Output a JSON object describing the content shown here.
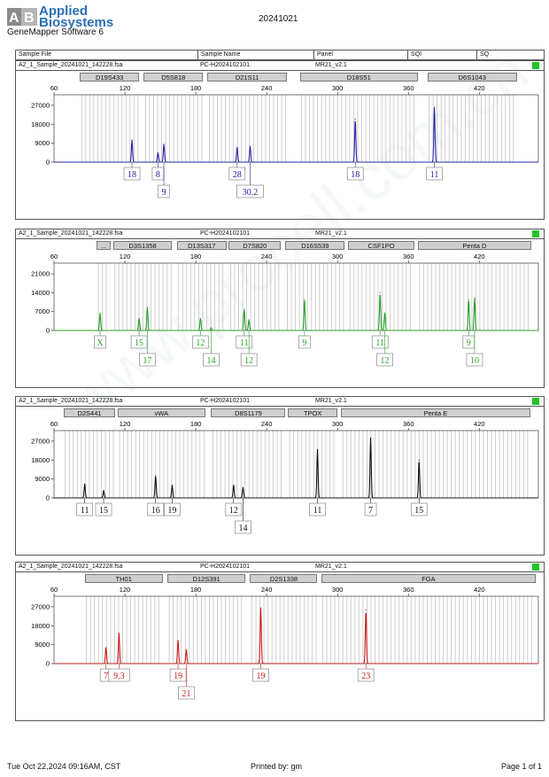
{
  "brand": {
    "line1": "Applied",
    "line2": "Biosystems",
    "software": "GeneMapper Software 6"
  },
  "run_id": "20241021",
  "header": {
    "sample_file": "Sample File",
    "sample_name": "Sample Name",
    "panel": "Panel",
    "sqi": "SQI",
    "sq": "SQ"
  },
  "footer": {
    "datetime": "Tue Oct 22,2024 09:16AM, CST",
    "printed_by": "Printed by: gm",
    "page": "Page 1 of 1"
  },
  "colors": {
    "blue": "#2424a8",
    "green": "#2aa02a",
    "black": "#111111",
    "red": "#cc1a1a",
    "status": "#22c22a",
    "marker_fill": "#cfcfcf"
  },
  "chart_data": [
    {
      "type": "line",
      "dye": "blue",
      "sample_file": "A2_1_Sample_20241021_142228.fsa",
      "sample_name": "PC-H2024102101",
      "panel": "MR21_v2.1",
      "x_ticks": [
        60,
        120,
        180,
        240,
        300,
        360,
        420
      ],
      "xlim": [
        60,
        470
      ],
      "y_ticks": [
        0,
        9000,
        18000,
        27000
      ],
      "y_tick_labels": [
        "0",
        "9000",
        "18000",
        "27000"
      ],
      "ylim": [
        0,
        32000
      ],
      "markers": [
        {
          "label": "D19S433",
          "x0": 82,
          "x1": 132
        },
        {
          "label": "D5S818",
          "x0": 136,
          "x1": 186
        },
        {
          "label": "D21S11",
          "x0": 190,
          "x1": 257
        },
        {
          "label": "D18S51",
          "x0": 268,
          "x1": 368
        },
        {
          "label": "D6S1043",
          "x0": 376,
          "x1": 452
        }
      ],
      "peaks": [
        {
          "x": 126,
          "y": 10500
        },
        {
          "x": 148,
          "y": 4500
        },
        {
          "x": 153,
          "y": 8500
        },
        {
          "x": 215,
          "y": 7000
        },
        {
          "x": 226,
          "y": 7500
        },
        {
          "x": 315,
          "y": 20500
        },
        {
          "x": 382,
          "y": 26000
        }
      ],
      "alleles": [
        {
          "label": "18",
          "x": 126,
          "row": 1
        },
        {
          "label": "8",
          "x": 148,
          "row": 1
        },
        {
          "label": "9",
          "x": 153,
          "row": 2
        },
        {
          "label": "28",
          "x": 215,
          "row": 1
        },
        {
          "label": "30.2",
          "x": 226,
          "row": 2
        },
        {
          "label": "18",
          "x": 315,
          "row": 1
        },
        {
          "label": "11",
          "x": 382,
          "row": 1
        }
      ]
    },
    {
      "type": "line",
      "dye": "green",
      "sample_file": "A2_1_Sample_20241021_142228.fsa",
      "sample_name": "PC-H2024102101",
      "panel": "MR21_v2.1",
      "x_ticks": [
        60,
        120,
        180,
        240,
        300,
        360,
        420
      ],
      "xlim": [
        60,
        470
      ],
      "y_ticks": [
        0,
        7000,
        14000,
        21000
      ],
      "y_tick_labels": [
        "0",
        "7000",
        "14000",
        "21000"
      ],
      "ylim": [
        0,
        25000
      ],
      "markers": [
        {
          "label": "...",
          "x0": 96,
          "x1": 108
        },
        {
          "label": "D3S1358",
          "x0": 110,
          "x1": 160
        },
        {
          "label": "D13S317",
          "x0": 164,
          "x1": 206
        },
        {
          "label": "D7S820",
          "x0": 208,
          "x1": 252
        },
        {
          "label": "D16S539",
          "x0": 256,
          "x1": 306
        },
        {
          "label": "CSF1PO",
          "x0": 309,
          "x1": 365
        },
        {
          "label": "Penta D",
          "x0": 368,
          "x1": 464
        }
      ],
      "peaks": [
        {
          "x": 99,
          "y": 6500
        },
        {
          "x": 132,
          "y": 4500
        },
        {
          "x": 139,
          "y": 8500
        },
        {
          "x": 184,
          "y": 4500
        },
        {
          "x": 193,
          "y": 1000
        },
        {
          "x": 221,
          "y": 8000
        },
        {
          "x": 225,
          "y": 4000
        },
        {
          "x": 272,
          "y": 11500
        },
        {
          "x": 336,
          "y": 14000
        },
        {
          "x": 340,
          "y": 6500
        },
        {
          "x": 411,
          "y": 11500
        },
        {
          "x": 416,
          "y": 12000
        }
      ],
      "alleles": [
        {
          "label": "X",
          "x": 99,
          "row": 1
        },
        {
          "label": "15",
          "x": 132,
          "row": 1
        },
        {
          "label": "17",
          "x": 139,
          "row": 2
        },
        {
          "label": "12",
          "x": 184,
          "row": 1
        },
        {
          "label": "14",
          "x": 193,
          "row": 2
        },
        {
          "label": "11",
          "x": 221,
          "row": 1
        },
        {
          "label": "12",
          "x": 225,
          "row": 2
        },
        {
          "label": "9",
          "x": 272,
          "row": 1
        },
        {
          "label": "11",
          "x": 336,
          "row": 1
        },
        {
          "label": "12",
          "x": 340,
          "row": 2
        },
        {
          "label": "9",
          "x": 411,
          "row": 1
        },
        {
          "label": "10",
          "x": 416,
          "row": 2
        }
      ]
    },
    {
      "type": "line",
      "dye": "black",
      "sample_file": "A2_1_Sample_20241021_142228.fsa",
      "sample_name": "PC-H2024102101",
      "panel": "MR21_v2.1",
      "x_ticks": [
        60,
        120,
        180,
        240,
        300,
        360,
        420
      ],
      "xlim": [
        60,
        470
      ],
      "y_ticks": [
        0,
        9000,
        18000,
        27000
      ],
      "y_tick_labels": [
        "0",
        "9000",
        "18000",
        "27000"
      ],
      "ylim": [
        0,
        32000
      ],
      "markers": [
        {
          "label": "D2S441",
          "x0": 68,
          "x1": 112
        },
        {
          "label": "vWA",
          "x0": 114,
          "x1": 188
        },
        {
          "label": "D8S1179",
          "x0": 193,
          "x1": 256
        },
        {
          "label": "TPOX",
          "x0": 258,
          "x1": 300
        },
        {
          "label": "Penta E",
          "x0": 303,
          "x1": 463
        }
      ],
      "peaks": [
        {
          "x": 86,
          "y": 6500
        },
        {
          "x": 102,
          "y": 3500
        },
        {
          "x": 146,
          "y": 10500
        },
        {
          "x": 160,
          "y": 6000
        },
        {
          "x": 212,
          "y": 6000
        },
        {
          "x": 220,
          "y": 5000
        },
        {
          "x": 283,
          "y": 23000
        },
        {
          "x": 328,
          "y": 28500
        },
        {
          "x": 369,
          "y": 18000
        }
      ],
      "alleles": [
        {
          "label": "11",
          "x": 86,
          "row": 1
        },
        {
          "label": "15",
          "x": 102,
          "row": 1
        },
        {
          "label": "16",
          "x": 146,
          "row": 1
        },
        {
          "label": "19",
          "x": 160,
          "row": 1
        },
        {
          "label": "12",
          "x": 212,
          "row": 1
        },
        {
          "label": "14",
          "x": 220,
          "row": 2
        },
        {
          "label": "11",
          "x": 283,
          "row": 1
        },
        {
          "label": "7",
          "x": 328,
          "row": 1
        },
        {
          "label": "15",
          "x": 369,
          "row": 1
        }
      ]
    },
    {
      "type": "line",
      "dye": "red",
      "sample_file": "A2_1_Sample_20241021_142228.fsa",
      "sample_name": "PC-H2024102101",
      "panel": "MR21_v2.1",
      "x_ticks": [
        60,
        120,
        180,
        240,
        300,
        360,
        420
      ],
      "xlim": [
        60,
        470
      ],
      "y_ticks": [
        0,
        9000,
        18000,
        27000
      ],
      "y_tick_labels": [
        "0",
        "9000",
        "18000",
        "27000"
      ],
      "ylim": [
        0,
        32000
      ],
      "markers": [
        {
          "label": "TH01",
          "x0": 86,
          "x1": 152
        },
        {
          "label": "D12S391",
          "x0": 156,
          "x1": 222
        },
        {
          "label": "D2S1338",
          "x0": 226,
          "x1": 283
        },
        {
          "label": "FGA",
          "x0": 286,
          "x1": 468
        }
      ],
      "peaks": [
        {
          "x": 104,
          "y": 7500
        },
        {
          "x": 115,
          "y": 14500
        },
        {
          "x": 165,
          "y": 11000
        },
        {
          "x": 172,
          "y": 6500
        },
        {
          "x": 235,
          "y": 26500
        },
        {
          "x": 324,
          "y": 25500
        }
      ],
      "alleles": [
        {
          "label": "7",
          "x": 104,
          "row": 1
        },
        {
          "label": "9.3",
          "x": 115,
          "row": 1
        },
        {
          "label": "19",
          "x": 165,
          "row": 1
        },
        {
          "label": "21",
          "x": 172,
          "row": 2
        },
        {
          "label": "19",
          "x": 235,
          "row": 1
        },
        {
          "label": "23",
          "x": 324,
          "row": 1
        }
      ]
    }
  ]
}
